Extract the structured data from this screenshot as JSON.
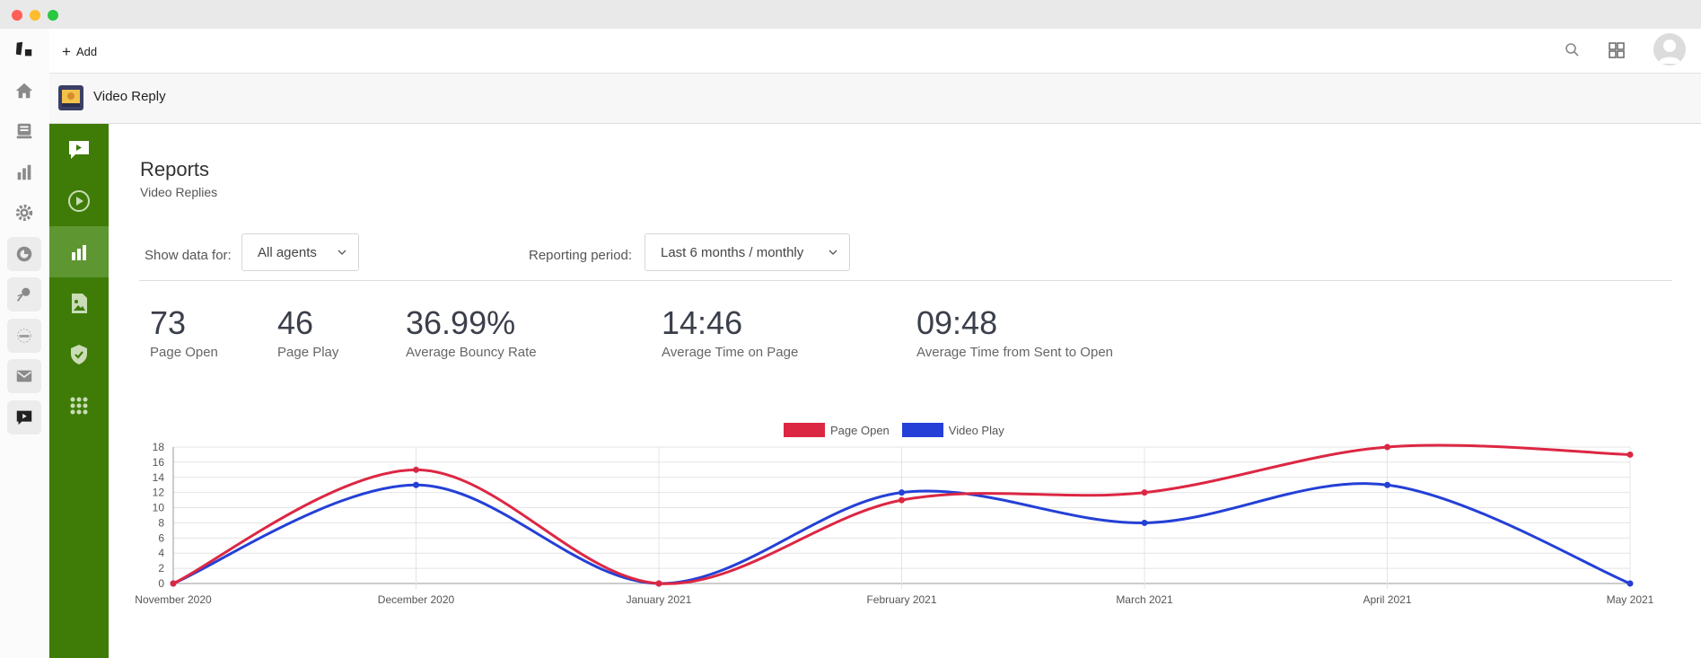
{
  "topbar": {
    "add_label": "Add"
  },
  "app": {
    "title": "Video Reply"
  },
  "page": {
    "title": "Reports",
    "subtitle": "Video Replies"
  },
  "filters": {
    "show_data_label": "Show data for:",
    "show_data_value": "All agents",
    "period_label": "Reporting period:",
    "period_value": "Last 6 months / monthly"
  },
  "stats": [
    {
      "value": "73",
      "label": "Page Open"
    },
    {
      "value": "46",
      "label": "Page Play"
    },
    {
      "value": "36.99%",
      "label": "Average Bouncy Rate"
    },
    {
      "value": "14:46",
      "label": "Average Time on Page"
    },
    {
      "value": "09:48",
      "label": "Average Time from Sent to Open"
    }
  ],
  "rail_icons": [
    "logo-icon",
    "home-icon",
    "inbox-icon",
    "reports-icon",
    "settings-icon",
    "app-cyclic-icon",
    "app-spotlight-icon",
    "app-code-icon",
    "app-mail-icon",
    "app-video-reply-icon"
  ],
  "subnav_icons": [
    "video-message-icon",
    "play-circle-icon",
    "bar-chart-icon",
    "image-file-icon",
    "shield-check-icon",
    "apps-grid-icon"
  ],
  "colors": {
    "nav_green": "#3e7c07",
    "nav_active": "#5e9632",
    "page_open": "#dc2743",
    "video_play": "#2440d6"
  },
  "chart_data": {
    "type": "line",
    "categories": [
      "November 2020",
      "December 2020",
      "January 2021",
      "February 2021",
      "March 2021",
      "April 2021",
      "May 2021"
    ],
    "series": [
      {
        "name": "Page Open",
        "color": "#dc2743",
        "values": [
          0,
          15,
          0,
          11,
          12,
          18,
          17
        ]
      },
      {
        "name": "Video Play",
        "color": "#2440d6",
        "values": [
          0,
          13,
          0,
          12,
          8,
          13,
          0
        ]
      }
    ],
    "ylim": [
      0,
      18
    ],
    "yticks": [
      0,
      2,
      4,
      6,
      8,
      10,
      12,
      14,
      16,
      18
    ],
    "grid": true,
    "legend": "top-center"
  }
}
